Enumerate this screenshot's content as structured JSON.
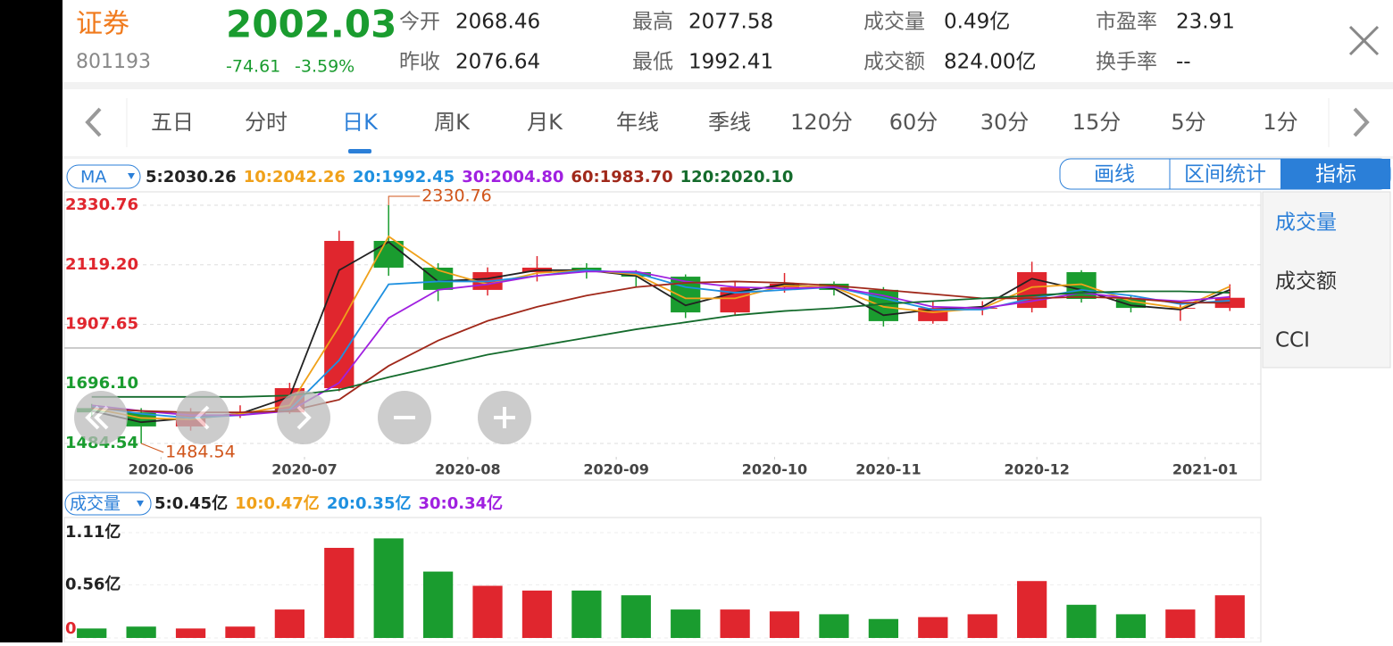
{
  "header": {
    "name": "证券",
    "code": "801193",
    "price": "2002.03",
    "change": "-74.61",
    "change_pct": "-3.59%",
    "stats": [
      {
        "label": "今开",
        "value": "2068.46"
      },
      {
        "label": "最高",
        "value": "2077.58"
      },
      {
        "label": "成交量",
        "value": "0.49亿"
      },
      {
        "label": "市盈率",
        "value": "23.91"
      },
      {
        "label": "昨收",
        "value": "2076.64"
      },
      {
        "label": "最低",
        "value": "1992.41"
      },
      {
        "label": "成交额",
        "value": "824.00亿"
      },
      {
        "label": "换手率",
        "value": "--"
      }
    ]
  },
  "tabs": {
    "items": [
      "五日",
      "分时",
      "日K",
      "周K",
      "月K",
      "年线",
      "季线",
      "120分",
      "60分",
      "30分",
      "15分",
      "5分",
      "1分"
    ],
    "active": "日K"
  },
  "toolbar": {
    "buttons": [
      "画线",
      "区间统计",
      "指标"
    ]
  },
  "side_menu": [
    "成交量",
    "成交额",
    "CCI"
  ],
  "chart_data": [
    {
      "type": "candlestick",
      "legend_label": "MA",
      "legend_items": [
        {
          "text": "5:2030.26",
          "color": "#222222"
        },
        {
          "text": "10:2042.26",
          "color": "#f0a11a"
        },
        {
          "text": "20:1992.45",
          "color": "#1e90e0"
        },
        {
          "text": "30:2004.80",
          "color": "#a020e0"
        },
        {
          "text": "60:1983.70",
          "color": "#a0281a"
        },
        {
          "text": "120:2020.10",
          "color": "#146b2c"
        }
      ],
      "open": [
        1610,
        1595,
        1545,
        1595,
        1595,
        1681,
        2204,
        2109,
        2030,
        2093,
        2109,
        2093,
        2077,
        1950,
        2039,
        2052,
        2030,
        1919,
        1966,
        1966,
        2093,
        1998,
        1966,
        1966
      ],
      "high": [
        1625,
        1610,
        1610,
        1620,
        1700,
        2240,
        2330.76,
        2125,
        2110,
        2150,
        2125,
        2100,
        2085,
        2060,
        2090,
        2060,
        2040,
        1990,
        1990,
        2130,
        2100,
        2010,
        1990,
        2050
      ],
      "low": [
        1580,
        1484.54,
        1530,
        1575,
        1590,
        1670,
        2080,
        1990,
        2010,
        2060,
        2070,
        2040,
        1930,
        1940,
        2020,
        2010,
        1900,
        1910,
        1940,
        1950,
        1985,
        1950,
        1920,
        1955
      ],
      "close": [
        1595,
        1545,
        1595,
        1595,
        1681,
        2204,
        2109,
        2030,
        2093,
        2109,
        2093,
        2077,
        1950,
        2039,
        2052,
        2030,
        1919,
        1966,
        1966,
        2093,
        1998,
        1966,
        1966,
        2002
      ],
      "up_color": "#e0262e",
      "down_color": "#1a9c2f",
      "series": [
        {
          "name": "MA5",
          "color": "#222222",
          "values": [
            1600,
            1560,
            1575,
            1590,
            1650,
            2100,
            2200,
            2060,
            2070,
            2100,
            2100,
            2080,
            1975,
            2020,
            2050,
            2035,
            1940,
            1960,
            1970,
            2070,
            2030,
            1975,
            1960,
            2030
          ]
        },
        {
          "name": "MA10",
          "color": "#f0a11a",
          "values": [
            1610,
            1575,
            1570,
            1590,
            1620,
            1900,
            2220,
            2100,
            2050,
            2090,
            2100,
            2085,
            2000,
            2000,
            2045,
            2040,
            1970,
            1950,
            1965,
            2040,
            2050,
            1990,
            1965,
            2042
          ]
        },
        {
          "name": "MA20",
          "color": "#1e90e0",
          "values": [
            1615,
            1590,
            1575,
            1585,
            1605,
            1780,
            2050,
            2060,
            2060,
            2080,
            2100,
            2090,
            2040,
            2020,
            2030,
            2040,
            2000,
            1960,
            1960,
            2000,
            2030,
            2010,
            1980,
            1992
          ]
        },
        {
          "name": "MA30",
          "color": "#a020e0",
          "values": [
            1620,
            1600,
            1585,
            1585,
            1600,
            1700,
            1930,
            2030,
            2050,
            2080,
            2095,
            2095,
            2060,
            2040,
            2035,
            2040,
            2010,
            1970,
            1965,
            1990,
            2020,
            2000,
            1990,
            2005
          ]
        },
        {
          "name": "MA60",
          "color": "#a0281a",
          "values": [
            1610,
            1600,
            1595,
            1595,
            1600,
            1640,
            1760,
            1850,
            1920,
            1970,
            2010,
            2040,
            2055,
            2060,
            2055,
            2045,
            2030,
            2015,
            2000,
            2000,
            2005,
            2000,
            1985,
            1984
          ]
        },
        {
          "name": "MA120",
          "color": "#146b2c",
          "values": [
            1650,
            1650,
            1650,
            1650,
            1655,
            1675,
            1720,
            1760,
            1800,
            1830,
            1860,
            1890,
            1915,
            1940,
            1955,
            1965,
            1980,
            1990,
            2000,
            2010,
            2020,
            2025,
            2025,
            2020
          ]
        }
      ],
      "ylim": [
        1484.54,
        2330.76
      ],
      "yticks": [
        2330.76,
        {
          "value": 2119.2,
          "label": "2119.20"
        },
        1907.65,
        {
          "value": 1696.1,
          "label": "1696.10"
        },
        1484.54
      ],
      "xticks": [
        {
          "value": 1.4,
          "label": "2020-06"
        },
        {
          "value": 4.3,
          "label": "2020-07"
        },
        {
          "value": 7.6,
          "label": "2020-08"
        },
        {
          "value": 10.6,
          "label": "2020-09"
        },
        {
          "value": 13.8,
          "label": "2020-10"
        },
        {
          "value": 16.1,
          "label": "2020-11"
        },
        {
          "value": 19.1,
          "label": "2020-12"
        },
        {
          "value": 22.5,
          "label": "2021-01"
        }
      ],
      "max_label": "2330.76",
      "min_label": "1484.54",
      "grid": true
    },
    {
      "type": "bar",
      "legend_label": "成交量",
      "legend_items": [
        {
          "text": "5:0.45亿",
          "color": "#222222"
        },
        {
          "text": "10:0.47亿",
          "color": "#f0a11a"
        },
        {
          "text": "20:0.35亿",
          "color": "#1e90e0"
        },
        {
          "text": "30:0.34亿",
          "color": "#a020e0"
        }
      ],
      "values": [
        0.1,
        0.12,
        0.1,
        0.12,
        0.3,
        0.95,
        1.05,
        0.7,
        0.55,
        0.5,
        0.5,
        0.45,
        0.3,
        0.3,
        0.28,
        0.25,
        0.2,
        0.22,
        0.25,
        0.6,
        0.35,
        0.25,
        0.3,
        0.45
      ],
      "ylim": [
        0,
        1.11
      ],
      "yticks": [
        {
          "value": 1.11,
          "label": "1.11亿"
        },
        {
          "value": 0.56,
          "label": "0.56亿"
        },
        0
      ]
    }
  ]
}
